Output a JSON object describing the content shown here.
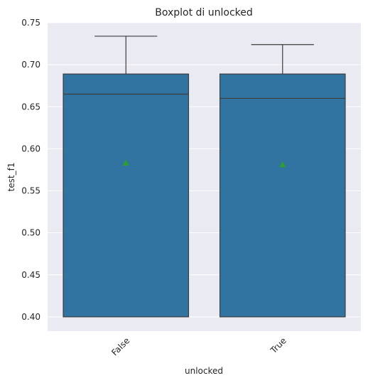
{
  "chart_data": {
    "type": "boxplot",
    "title": "Boxplot di unlocked",
    "xlabel": "unlocked",
    "ylabel": "test_f1",
    "ylim": [
      0.383,
      0.75
    ],
    "yticks": [
      "0.40",
      "0.45",
      "0.50",
      "0.55",
      "0.60",
      "0.65",
      "0.70",
      "0.75"
    ],
    "categories": [
      "False",
      "True"
    ],
    "boxes": [
      {
        "category": "False",
        "whisker_low": 0.4,
        "q1": 0.4,
        "median": 0.665,
        "q3": 0.689,
        "whisker_high": 0.734,
        "mean": 0.583
      },
      {
        "category": "True",
        "whisker_low": 0.4,
        "q1": 0.4,
        "median": 0.66,
        "q3": 0.689,
        "whisker_high": 0.724,
        "mean": 0.581
      }
    ],
    "grid": true,
    "colors": {
      "background": "#eaeaf2",
      "box_fill": "#3274a1",
      "box_edge": "#3d3d3d",
      "mean_marker": "#2ca02c",
      "grid": "#ffffff"
    }
  }
}
